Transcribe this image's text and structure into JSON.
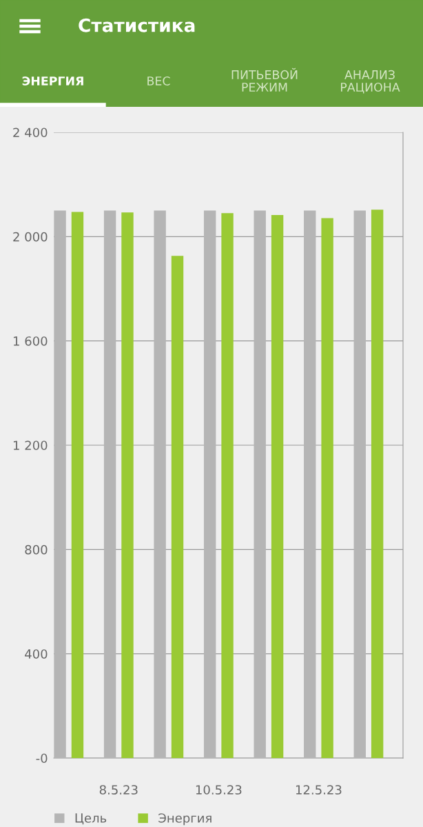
{
  "chart_data": {
    "type": "bar",
    "title": "Статистика",
    "annotations": [
      "ЭНЕРГИЯ",
      "ВЕС",
      "ПИТЬЕВОЙ\nРЕЖИМ",
      "АНАЛИЗ\nРАЦИОНА"
    ],
    "categories": [
      null,
      "8.5.23",
      null,
      "10.5.23",
      null,
      "12.5.23",
      null
    ],
    "series": [
      {
        "name": "Цель",
        "color": "#b5b5b5",
        "values": [
          2100,
          2100,
          2100,
          2100,
          2100,
          2100,
          2100
        ]
      },
      {
        "name": "Энергия",
        "color": "#9aca34",
        "values": [
          2095,
          2093,
          1926,
          2090,
          2083,
          2071,
          2103
        ]
      }
    ],
    "ylim": [
      0,
      2400
    ],
    "yticks": [
      {
        "value": 0,
        "label": "-0"
      },
      {
        "value": 400,
        "label": "400"
      },
      {
        "value": 800,
        "label": "800"
      },
      {
        "value": 1200,
        "label": "1 200"
      },
      {
        "value": 1600,
        "label": "1 600"
      },
      {
        "value": 2000,
        "label": "2 000"
      },
      {
        "value": 2400,
        "label": "2 400"
      }
    ],
    "grid": "y",
    "legend": "bottom"
  }
}
